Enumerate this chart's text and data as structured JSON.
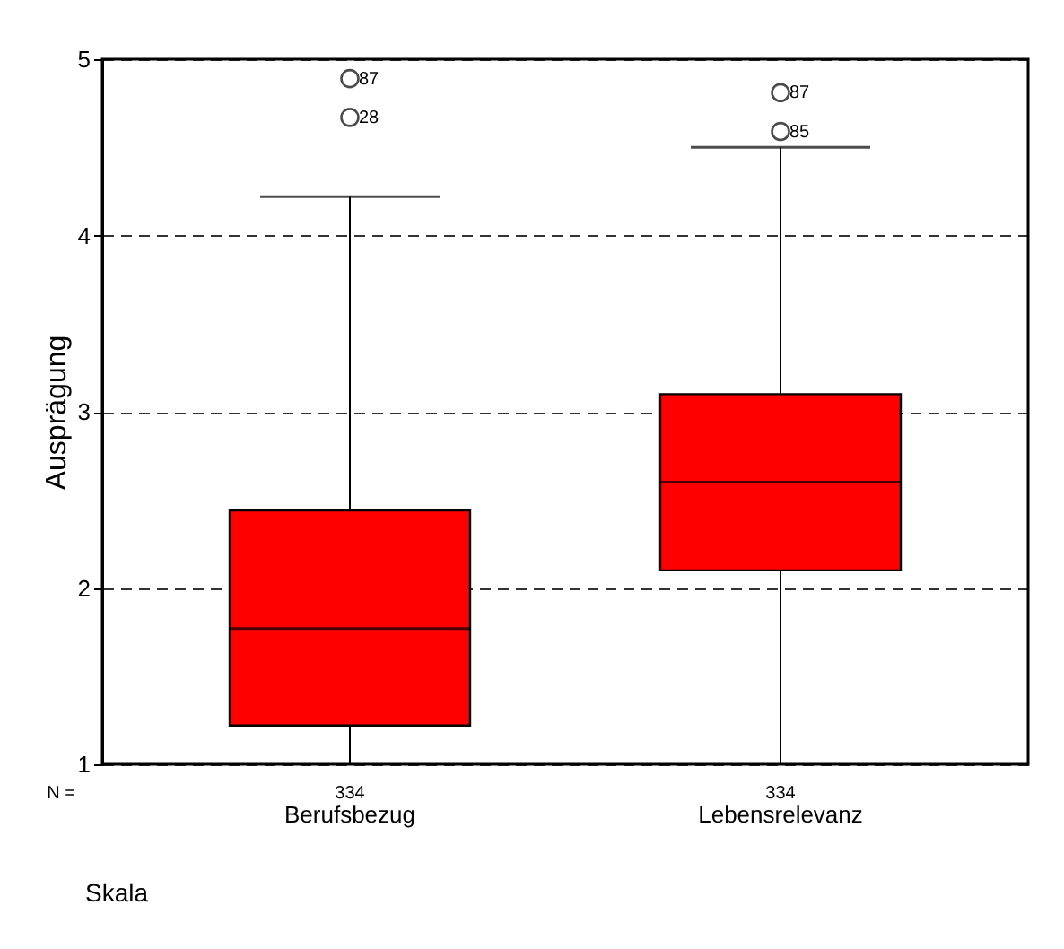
{
  "chart_data": {
    "type": "box",
    "xlabel": "Skala",
    "ylabel": "Ausprägung",
    "categories": [
      "Berufsbezug",
      "Lebensrelevanz"
    ],
    "boxes": [
      {
        "low": 1,
        "q1": 1.22,
        "median": 1.77,
        "q3": 2.44,
        "high": 4.22,
        "outliers": [
          4.89,
          4.67
        ]
      },
      {
        "low": 1,
        "q1": 2.1,
        "median": 2.6,
        "q3": 3.1,
        "high": 4.5,
        "outliers": [
          4.81,
          4.59
        ]
      }
    ],
    "color": "#ff0000",
    "ylim": [
      1,
      5
    ],
    "yticks": [
      1,
      2,
      3,
      4,
      5
    ],
    "grid": "y",
    "line_style": "dashed",
    "annotations": [
      "N =",
      "334",
      "334",
      "87",
      "28",
      "87",
      "85"
    ]
  }
}
